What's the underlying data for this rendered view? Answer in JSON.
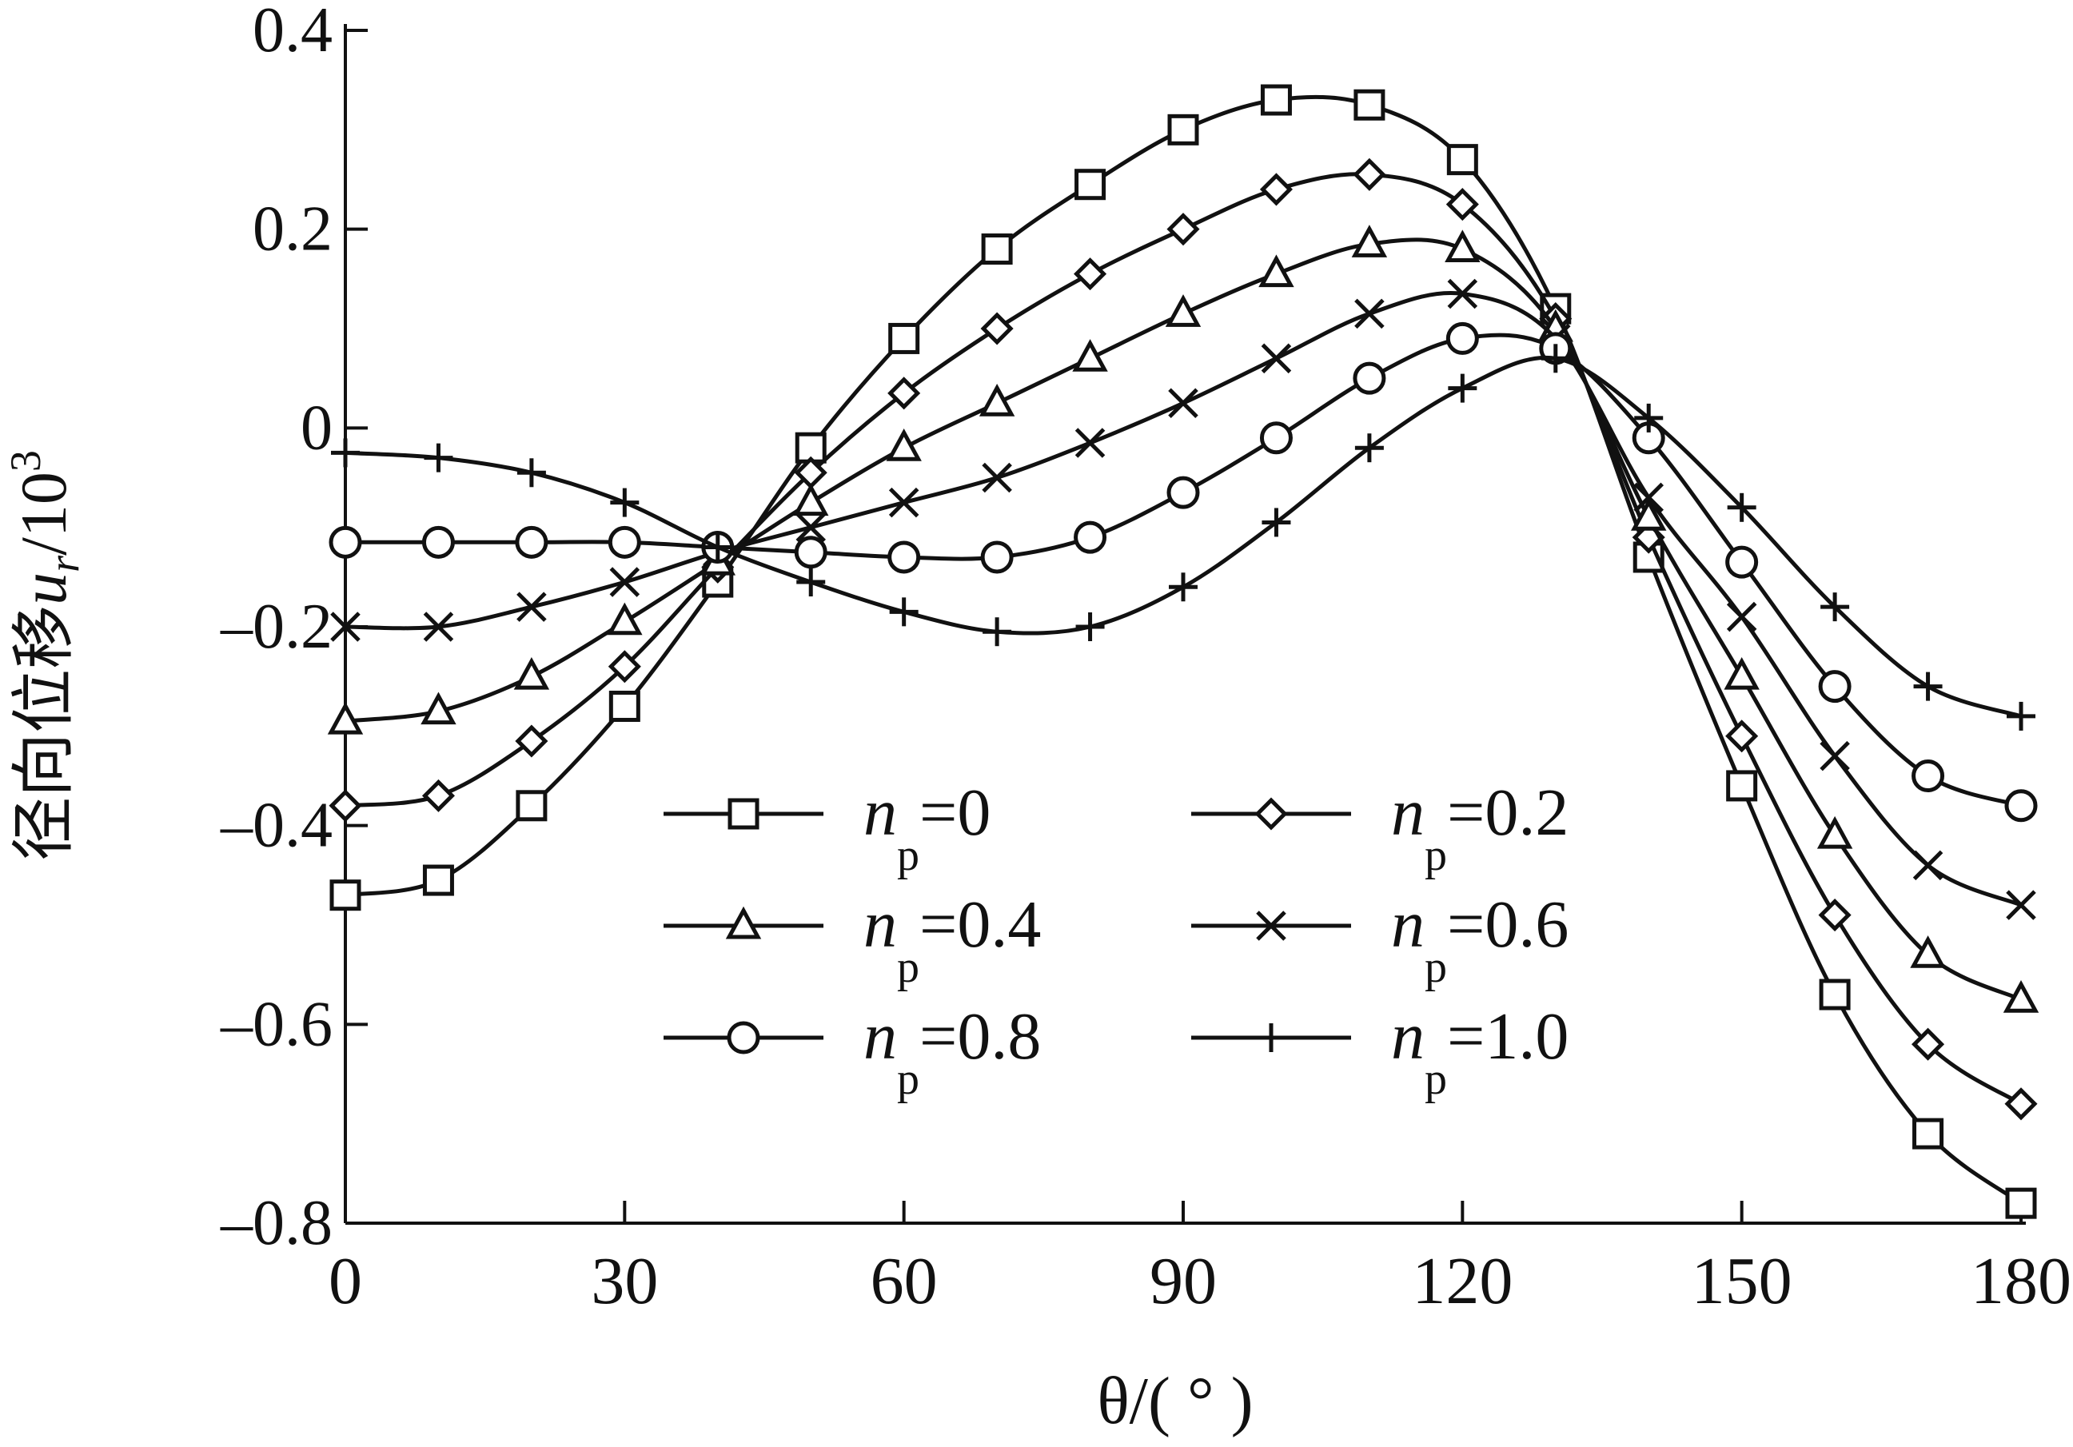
{
  "chart_data": {
    "type": "line",
    "title": "",
    "xlabel": "θ/( ° )",
    "ylabel": "径向位移u_r/10³",
    "ylabel_parts": {
      "cn": "径向位移",
      "var": "u",
      "sub": "r",
      "rest": "/10",
      "sup": "3"
    },
    "xlim": [
      0,
      180
    ],
    "ylim": [
      -0.8,
      0.4
    ],
    "xticks": [
      0,
      30,
      60,
      90,
      120,
      150,
      180
    ],
    "xtick_labels": [
      "0",
      "30",
      "60",
      "90",
      "120",
      "150",
      "180"
    ],
    "yticks": [
      0.4,
      0.2,
      0,
      -0.2,
      -0.4,
      -0.6,
      -0.8
    ],
    "ytick_labels": [
      "0.4",
      "0.2",
      "0",
      "–0.2",
      "–0.4",
      "–0.6",
      "–0.8"
    ],
    "grid": false,
    "legend_position": "lower-center",
    "legend_var": "n",
    "legend_sub": "p",
    "x": [
      0,
      10,
      20,
      30,
      40,
      50,
      60,
      70,
      80,
      90,
      100,
      110,
      120,
      130,
      140,
      150,
      160,
      170,
      180
    ],
    "series": [
      {
        "name": "=0",
        "marker": "square",
        "values": [
          -0.47,
          -0.455,
          -0.38,
          -0.28,
          -0.155,
          -0.02,
          0.09,
          0.18,
          0.245,
          0.3,
          0.33,
          0.325,
          0.27,
          0.12,
          -0.13,
          -0.36,
          -0.57,
          -0.71,
          -0.78
        ]
      },
      {
        "name": "=0.2",
        "marker": "diamond",
        "values": [
          -0.38,
          -0.37,
          -0.315,
          -0.24,
          -0.14,
          -0.045,
          0.035,
          0.1,
          0.155,
          0.2,
          0.24,
          0.255,
          0.225,
          0.11,
          -0.11,
          -0.31,
          -0.49,
          -0.62,
          -0.68
        ]
      },
      {
        "name": "=0.4",
        "marker": "triangle",
        "values": [
          -0.295,
          -0.285,
          -0.25,
          -0.195,
          -0.135,
          -0.075,
          -0.02,
          0.025,
          0.07,
          0.115,
          0.155,
          0.185,
          0.18,
          0.1,
          -0.09,
          -0.25,
          -0.41,
          -0.53,
          -0.575
        ]
      },
      {
        "name": "=0.6",
        "marker": "x",
        "values": [
          -0.2,
          -0.2,
          -0.18,
          -0.155,
          -0.125,
          -0.1,
          -0.075,
          -0.05,
          -0.015,
          0.025,
          0.07,
          0.115,
          0.135,
          0.09,
          -0.07,
          -0.19,
          -0.33,
          -0.44,
          -0.48
        ]
      },
      {
        "name": "=0.8",
        "marker": "circle",
        "values": [
          -0.115,
          -0.115,
          -0.115,
          -0.115,
          -0.12,
          -0.125,
          -0.13,
          -0.13,
          -0.11,
          -0.065,
          -0.01,
          0.05,
          0.09,
          0.08,
          -0.01,
          -0.135,
          -0.26,
          -0.35,
          -0.38
        ]
      },
      {
        "name": "=1.0",
        "marker": "plus",
        "values": [
          -0.025,
          -0.03,
          -0.045,
          -0.075,
          -0.12,
          -0.155,
          -0.185,
          -0.205,
          -0.2,
          -0.16,
          -0.095,
          -0.02,
          0.04,
          0.07,
          0.01,
          -0.08,
          -0.18,
          -0.26,
          -0.29
        ]
      }
    ]
  }
}
